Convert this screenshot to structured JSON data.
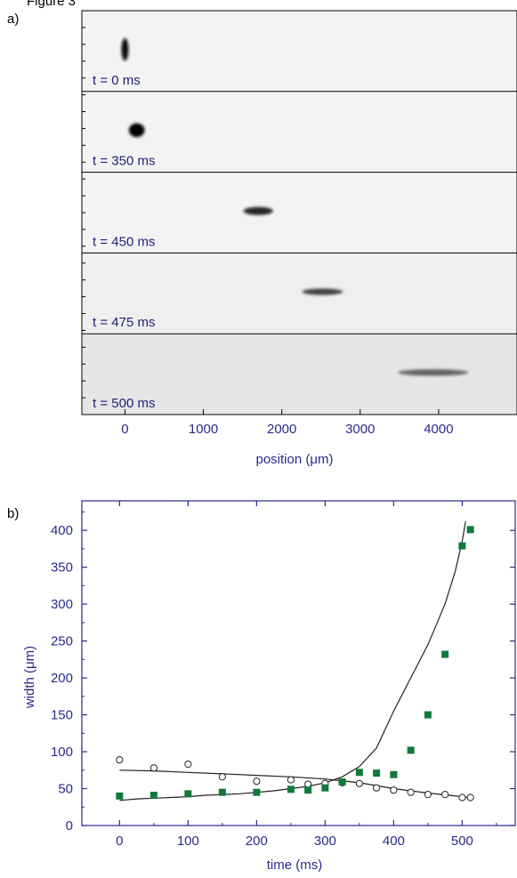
{
  "figure": {
    "caption_fragment": "Figure 3",
    "panel_a_label": "a)",
    "panel_b_label": "b)"
  },
  "colors": {
    "axis": "#2a2a8c",
    "frame_label": "#1f1f7a",
    "squares": "#0f7a3a",
    "curve": "#222222",
    "panel_background": "#f3f3f3"
  },
  "chart_data": [
    {
      "type": "heatmap",
      "xlabel": "position (μm)",
      "xlim": [
        -550,
        5000
      ],
      "xticks": [
        0,
        1000,
        2000,
        3000,
        4000
      ],
      "frames": [
        {
          "label": "t = 0 ms",
          "cloud_center_um": 0,
          "cloud_width_um": 90,
          "cloud_height_rel": 0.28,
          "peak_darkness": 0.95
        },
        {
          "label": "t = 350 ms",
          "cloud_center_um": 150,
          "cloud_width_um": 200,
          "cloud_height_rel": 0.17,
          "peak_darkness": 1.0
        },
        {
          "label": "t = 450 ms",
          "cloud_center_um": 1700,
          "cloud_width_um": 380,
          "cloud_height_rel": 0.1,
          "peak_darkness": 0.85
        },
        {
          "label": "t = 475 ms",
          "cloud_center_um": 2520,
          "cloud_width_um": 520,
          "cloud_height_rel": 0.08,
          "peak_darkness": 0.75
        },
        {
          "label": "t = 500 ms",
          "cloud_center_um": 3930,
          "cloud_width_um": 900,
          "cloud_height_rel": 0.08,
          "peak_darkness": 0.62
        }
      ]
    },
    {
      "type": "scatter",
      "xlabel": "time (ms)",
      "ylabel": "width (μm)",
      "xlim": [
        -55,
        580
      ],
      "ylim": [
        0,
        440
      ],
      "xticks": [
        0,
        100,
        200,
        300,
        400,
        500
      ],
      "yticks": [
        0,
        50,
        100,
        150,
        200,
        250,
        300,
        350,
        400
      ],
      "series": [
        {
          "marker": "filled-square",
          "color": "#0f7a3a",
          "x": [
            0,
            50,
            100,
            150,
            200,
            250,
            275,
            300,
            325,
            350,
            375,
            400,
            425,
            450,
            475,
            500,
            512
          ],
          "y": [
            40,
            41,
            43,
            45,
            45,
            49,
            48,
            51,
            59,
            72,
            71,
            69,
            102,
            150,
            232,
            379,
            401
          ]
        },
        {
          "marker": "open-circle",
          "color": "#222222",
          "x": [
            0,
            50,
            100,
            150,
            200,
            250,
            275,
            300,
            325,
            350,
            375,
            400,
            425,
            450,
            475,
            500,
            512
          ],
          "y": [
            89,
            78,
            83,
            66,
            60,
            62,
            56,
            57,
            58,
            57,
            51,
            48,
            45,
            42,
            42,
            38,
            38
          ]
        },
        {
          "marker": "line",
          "color": "#222222",
          "x": [
            0,
            25,
            50,
            75,
            100,
            125,
            150,
            175,
            200,
            225,
            250,
            275,
            300,
            325,
            350,
            375,
            400,
            425,
            450,
            475,
            490,
            500,
            505
          ],
          "y": [
            34,
            36,
            37,
            38,
            39,
            41,
            42,
            43,
            45,
            47,
            50,
            53,
            58,
            66,
            80,
            105,
            155,
            200,
            245,
            300,
            345,
            385,
            412
          ]
        },
        {
          "marker": "line",
          "color": "#222222",
          "x": [
            0,
            50,
            100,
            150,
            200,
            250,
            300,
            350,
            400,
            450,
            500,
            515
          ],
          "y": [
            75,
            74,
            72,
            70,
            68,
            66,
            63,
            58,
            50,
            44,
            39,
            37
          ]
        }
      ]
    }
  ]
}
